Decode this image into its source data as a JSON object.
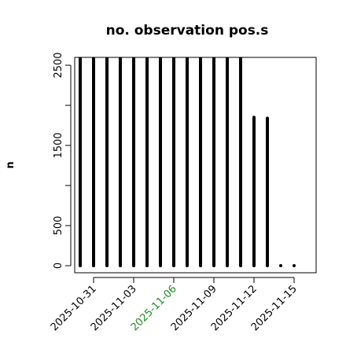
{
  "chart_data": {
    "type": "bar",
    "title": "no. observation pos.s",
    "y_label": "n",
    "x": [
      "2025-10-30",
      "2025-10-31",
      "2025-11-01",
      "2025-11-02",
      "2025-11-03",
      "2025-11-04",
      "2025-11-05",
      "2025-11-06",
      "2025-11-07",
      "2025-11-08",
      "2025-11-09",
      "2025-11-10",
      "2025-11-11",
      "2025-11-12",
      "2025-11-13",
      "2025-11-14",
      "2025-11-15"
    ],
    "categories": [
      null,
      "2025-10-31",
      null,
      null,
      "2025-11-03",
      null,
      null,
      "2025-11-06",
      null,
      null,
      "2025-11-09",
      null,
      null,
      "2025-11-12",
      null,
      null,
      "2025-11-15"
    ],
    "tick_label_colors": [
      null,
      "#000000",
      null,
      null,
      "#000000",
      null,
      null,
      "#228b22",
      null,
      null,
      "#000000",
      null,
      null,
      "#000000",
      null,
      null,
      "#000000"
    ],
    "values": [
      2600,
      2600,
      2600,
      2600,
      2600,
      2600,
      2600,
      2600,
      2600,
      2600,
      2600,
      2600,
      2600,
      1850,
      1840,
      0,
      0
    ],
    "color": "#000000",
    "ylim": [
      -88,
      2598
    ],
    "yticks": [
      0,
      500,
      {
        "value": 1000,
        "label": null
      },
      1500,
      {
        "value": 2000,
        "label": null
      },
      2500
    ]
  }
}
